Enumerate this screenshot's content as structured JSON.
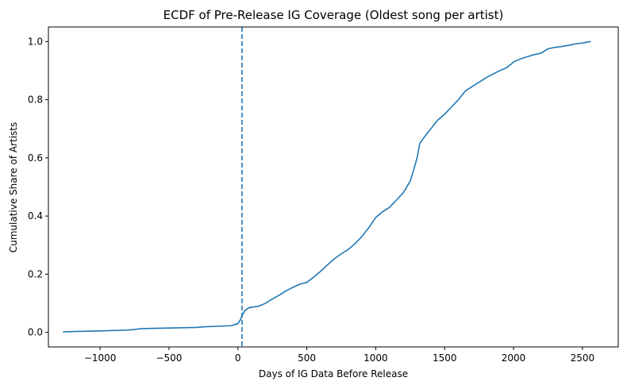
{
  "chart_data": {
    "type": "line",
    "title": "ECDF of Pre-Release IG Coverage (Oldest song per artist)",
    "xlabel": "Days of IG Data Before Release",
    "ylabel": "Cumulative Share of Artists",
    "xlim": [
      -1375,
      2760
    ],
    "ylim": [
      -0.05,
      1.05
    ],
    "xticks": [
      -1000,
      -500,
      0,
      500,
      1000,
      1500,
      2000,
      2500
    ],
    "xtick_labels": [
      "−1000",
      "−500",
      "0",
      "500",
      "1000",
      "1500",
      "2000",
      "2500"
    ],
    "yticks": [
      0.0,
      0.2,
      0.4,
      0.6,
      0.8,
      1.0
    ],
    "ytick_labels": [
      "0.0",
      "0.2",
      "0.4",
      "0.6",
      "0.8",
      "1.0"
    ],
    "grid": false,
    "reference_line": {
      "orientation": "vertical",
      "x": 30,
      "style": "dashed",
      "color": "#1f77b4"
    },
    "series": [
      {
        "color": "#1f77b4",
        "x": [
          -1270,
          -1000,
          -800,
          -750,
          -700,
          -500,
          -300,
          -250,
          -150,
          -50,
          0,
          20,
          30,
          50,
          80,
          150,
          200,
          250,
          300,
          350,
          400,
          450,
          500,
          550,
          600,
          650,
          700,
          750,
          800,
          850,
          900,
          950,
          1000,
          1050,
          1100,
          1150,
          1200,
          1250,
          1270,
          1300,
          1320,
          1350,
          1400,
          1450,
          1500,
          1550,
          1600,
          1650,
          1700,
          1750,
          1800,
          1850,
          1900,
          1950,
          1990,
          2000,
          2050,
          2100,
          2150,
          2200,
          2250,
          2300,
          2350,
          2400,
          2450,
          2500,
          2560
        ],
        "y": [
          0.002,
          0.005,
          0.008,
          0.01,
          0.013,
          0.015,
          0.017,
          0.019,
          0.021,
          0.023,
          0.03,
          0.045,
          0.058,
          0.075,
          0.085,
          0.09,
          0.1,
          0.115,
          0.128,
          0.143,
          0.155,
          0.166,
          0.172,
          0.19,
          0.21,
          0.232,
          0.253,
          0.27,
          0.285,
          0.305,
          0.33,
          0.36,
          0.395,
          0.415,
          0.43,
          0.455,
          0.48,
          0.52,
          0.55,
          0.6,
          0.65,
          0.67,
          0.7,
          0.73,
          0.75,
          0.775,
          0.8,
          0.83,
          0.845,
          0.86,
          0.875,
          0.888,
          0.9,
          0.91,
          0.925,
          0.93,
          0.94,
          0.948,
          0.955,
          0.96,
          0.975,
          0.98,
          0.983,
          0.987,
          0.992,
          0.995,
          1.0
        ]
      }
    ]
  }
}
